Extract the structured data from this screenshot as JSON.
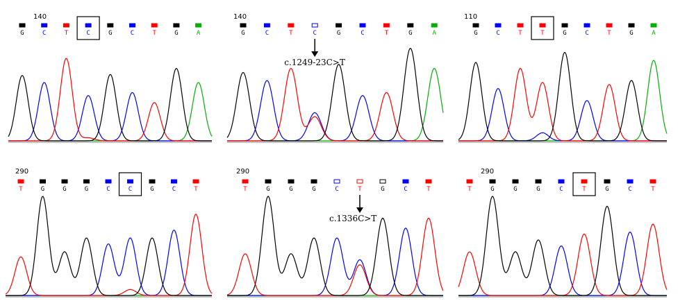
{
  "colors": {
    "G": "#000000",
    "C": "#0000ff",
    "T": "#ff0000",
    "A": "#00b000"
  },
  "panels": [
    {
      "number": "140",
      "bases": [
        "G",
        "C",
        "T",
        "C",
        "G",
        "C",
        "T",
        "G",
        "A"
      ],
      "boxed": 3,
      "hollow": [],
      "mutation": "",
      "traces": {
        "G": [
          0.65,
          0.0,
          0.0,
          0.0,
          0.66,
          0.0,
          0.0,
          0.72,
          0.0
        ],
        "C": [
          0.0,
          0.58,
          0.0,
          0.45,
          0.0,
          0.48,
          0.0,
          0.0,
          0.0
        ],
        "T": [
          0.0,
          0.0,
          0.82,
          0.03,
          0.0,
          0.0,
          0.38,
          0.0,
          0.0
        ],
        "A": [
          0,
          0,
          0,
          0,
          0,
          0,
          0,
          0,
          0.58
        ]
      }
    },
    {
      "number": "140",
      "bases": [
        "G",
        "C",
        "T",
        "C",
        "G",
        "C",
        "T",
        "G",
        "A"
      ],
      "boxed": -1,
      "hollow": [
        3
      ],
      "mutation": "c.1249-23C>T",
      "traces": {
        "G": [
          0.68,
          0.0,
          0.0,
          0.0,
          0.76,
          0.0,
          0.0,
          0.92,
          0.0
        ],
        "C": [
          0.0,
          0.6,
          0.0,
          0.28,
          0.0,
          0.45,
          0.0,
          0.0,
          0.0
        ],
        "T": [
          0.0,
          0.0,
          0.72,
          0.24,
          0.0,
          0.0,
          0.48,
          0.0,
          0.0
        ],
        "A": [
          0,
          0,
          0,
          0,
          0,
          0,
          0,
          0,
          0.72
        ]
      }
    },
    {
      "number": "110",
      "bases": [
        "G",
        "C",
        "T",
        "T",
        "G",
        "C",
        "T",
        "G",
        "A"
      ],
      "boxed": 3,
      "hollow": [],
      "mutation": "",
      "traces": {
        "G": [
          0.78,
          0.0,
          0.0,
          0.0,
          0.88,
          0.0,
          0.0,
          0.6,
          0.0
        ],
        "C": [
          0.0,
          0.52,
          0.0,
          0.08,
          0.0,
          0.4,
          0.0,
          0.0,
          0.0
        ],
        "T": [
          0.0,
          0.0,
          0.72,
          0.58,
          0.0,
          0.0,
          0.56,
          0.0,
          0.0
        ],
        "A": [
          0,
          0,
          0,
          0,
          0,
          0,
          0,
          0,
          0.8
        ]
      }
    },
    {
      "number": "290",
      "bases": [
        "T",
        "G",
        "G",
        "G",
        "C",
        "C",
        "G",
        "C",
        "T"
      ],
      "boxed": 5,
      "hollow": [],
      "mutation": "",
      "traces": {
        "G": [
          0.0,
          1.0,
          0.44,
          0.58,
          0.0,
          0.0,
          0.58,
          0.0,
          0.0
        ],
        "C": [
          0.0,
          0.0,
          0.0,
          0.0,
          0.52,
          0.58,
          0.0,
          0.66,
          0.0
        ],
        "T": [
          0.39,
          0.0,
          0.0,
          0.0,
          0.0,
          0.06,
          0.0,
          0.0,
          0.82
        ],
        "A": [
          0,
          0,
          0,
          0,
          0,
          0,
          0,
          0,
          0
        ]
      }
    },
    {
      "number": "290",
      "bases": [
        "T",
        "G",
        "G",
        "G",
        "C",
        "T",
        "G",
        "C",
        "T"
      ],
      "boxed": -1,
      "hollow": [
        4,
        5,
        6
      ],
      "mutation": "c.1336C>T",
      "traces": {
        "G": [
          0.0,
          1.0,
          0.42,
          0.58,
          0.0,
          0.0,
          0.78,
          0.0,
          0.0
        ],
        "C": [
          0.0,
          0.0,
          0.0,
          0.0,
          0.58,
          0.36,
          0.0,
          0.68,
          0.0
        ],
        "T": [
          0.42,
          0.0,
          0.0,
          0.0,
          0.0,
          0.31,
          0.0,
          0.0,
          0.78
        ],
        "A": [
          0,
          0,
          0,
          0,
          0,
          0,
          0,
          0,
          0
        ]
      }
    },
    {
      "number": "290",
      "bases": [
        "T",
        "G",
        "G",
        "G",
        "C",
        "T",
        "G",
        "C",
        "T"
      ],
      "boxed": 5,
      "hollow": [],
      "mutation": "",
      "traces": {
        "G": [
          0.0,
          1.0,
          0.44,
          0.56,
          0.0,
          0.0,
          0.9,
          0.0,
          0.0
        ],
        "C": [
          0.0,
          0.0,
          0.0,
          0.0,
          0.5,
          0.0,
          0.0,
          0.64,
          0.0
        ],
        "T": [
          0.44,
          0.0,
          0.0,
          0.0,
          0.0,
          0.62,
          0.0,
          0.0,
          0.72
        ],
        "A": [
          0,
          0,
          0,
          0,
          0,
          0,
          0,
          0,
          0
        ]
      }
    }
  ]
}
